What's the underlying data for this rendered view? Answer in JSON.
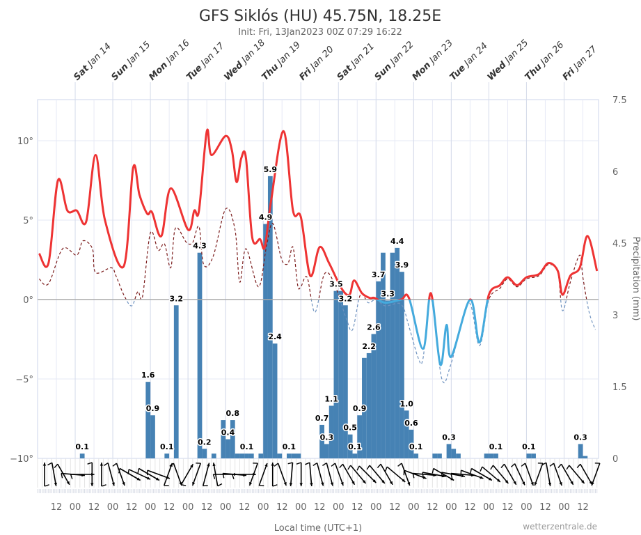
{
  "title": "GFS Siklós (HU) 45.75N, 18.25E",
  "subtitle": "Init: Fri, 13Jan2023 00Z 07:29 16:22",
  "credit": "wetterzentrale.de",
  "colors": {
    "temp_above": "#ee3333",
    "temp_below": "#44aadd",
    "dew_above": "#7a1a1a",
    "dew_below": "#6f93c0",
    "precip": "#4682b4",
    "zero_line": "#aaaaaa",
    "grid": "#e6e9f5",
    "wind": "#000000"
  },
  "chart_data": {
    "type": "line+bar",
    "title": "GFS Siklós (HU) 45.75N, 18.25E",
    "subtitle": "Init: Fri, 13Jan2023 00Z 07:29 16:22",
    "xlabel": "Local time (UTC+1)",
    "ylabel_right": "Precipitation (mm)",
    "xlim": [
      "2023-01-13T00",
      "2023-01-27T22"
    ],
    "ylim_left": [
      -10,
      12.6
    ],
    "ylim_right": [
      0,
      7.5
    ],
    "yticks_left": [
      {
        "v": 10,
        "label": "10°"
      },
      {
        "v": 5,
        "label": "5°"
      },
      {
        "v": 0,
        "label": "0°"
      },
      {
        "v": -5,
        "label": "−5°"
      },
      {
        "v": -10,
        "label": "−10°"
      }
    ],
    "yticks_right": [
      {
        "v": 7.5,
        "label": "7.5"
      },
      {
        "v": 6,
        "label": "6"
      },
      {
        "v": 4.5,
        "label": "4.5"
      },
      {
        "v": 3,
        "label": "3"
      },
      {
        "v": 1.5,
        "label": "1.5"
      },
      {
        "v": 0,
        "label": "0"
      }
    ],
    "grid": true,
    "days": [
      {
        "t": "2023-01-14T00",
        "dow": "Sat",
        "date": " Jan 14"
      },
      {
        "t": "2023-01-15T00",
        "dow": "Sun",
        "date": " Jan 15"
      },
      {
        "t": "2023-01-16T00",
        "dow": "Mon",
        "date": " Jan 16"
      },
      {
        "t": "2023-01-17T00",
        "dow": "Tue",
        "date": " Jan 17"
      },
      {
        "t": "2023-01-18T00",
        "dow": "Wed",
        "date": " Jan 18"
      },
      {
        "t": "2023-01-19T00",
        "dow": "Thu",
        "date": " Jan 19"
      },
      {
        "t": "2023-01-20T00",
        "dow": "Fri",
        "date": " Jan 20"
      },
      {
        "t": "2023-01-21T00",
        "dow": "Sat",
        "date": " Jan 21"
      },
      {
        "t": "2023-01-22T00",
        "dow": "Sun",
        "date": " Jan 22"
      },
      {
        "t": "2023-01-23T00",
        "dow": "Mon",
        "date": " Jan 23"
      },
      {
        "t": "2023-01-24T00",
        "dow": "Tue",
        "date": " Jan 24"
      },
      {
        "t": "2023-01-25T00",
        "dow": "Wed",
        "date": " Jan 25"
      },
      {
        "t": "2023-01-26T00",
        "dow": "Thu",
        "date": " Jan 26"
      },
      {
        "t": "2023-01-27T00",
        "dow": "Fri",
        "date": " Jan 27"
      }
    ],
    "hour_ticks": [
      "12",
      "00",
      "12",
      "00",
      "12",
      "00",
      "12",
      "00",
      "12",
      "00",
      "12",
      "00",
      "12",
      "00",
      "12",
      "00",
      "12",
      "00",
      "12",
      "00",
      "12",
      "00",
      "12",
      "00",
      "12",
      "00",
      "12",
      "00",
      "12"
    ],
    "temperature": [
      [
        "2023-01-13T01",
        2.9
      ],
      [
        "2023-01-13T07",
        2.3
      ],
      [
        "2023-01-13T13",
        7.5
      ],
      [
        "2023-01-13T19",
        5.6
      ],
      [
        "2023-01-14T01",
        5.6
      ],
      [
        "2023-01-14T07",
        4.9
      ],
      [
        "2023-01-14T13",
        9.1
      ],
      [
        "2023-01-14T19",
        5.0
      ],
      [
        "2023-01-15T07",
        2.1
      ],
      [
        "2023-01-15T13",
        8.3
      ],
      [
        "2023-01-15T17",
        6.6
      ],
      [
        "2023-01-15T22",
        5.4
      ],
      [
        "2023-01-16T01",
        5.5
      ],
      [
        "2023-01-16T07",
        4.0
      ],
      [
        "2023-01-16T13",
        7.0
      ],
      [
        "2023-01-17T00",
        4.4
      ],
      [
        "2023-01-17T04",
        5.6
      ],
      [
        "2023-01-17T07",
        5.6
      ],
      [
        "2023-01-17T12",
        10.6
      ],
      [
        "2023-01-17T15",
        9.1
      ],
      [
        "2023-01-18T00",
        10.3
      ],
      [
        "2023-01-18T04",
        9.4
      ],
      [
        "2023-01-18T07",
        7.4
      ],
      [
        "2023-01-18T10",
        8.9
      ],
      [
        "2023-01-18T13",
        8.9
      ],
      [
        "2023-01-18T17",
        3.9
      ],
      [
        "2023-01-18T22",
        3.8
      ],
      [
        "2023-01-19T01",
        3.3
      ],
      [
        "2023-01-19T05",
        6.2
      ],
      [
        "2023-01-19T13",
        10.6
      ],
      [
        "2023-01-19T19",
        5.6
      ],
      [
        "2023-01-20T00",
        5.2
      ],
      [
        "2023-01-20T06",
        1.5
      ],
      [
        "2023-01-20T12",
        3.3
      ],
      [
        "2023-01-20T18",
        2.3
      ],
      [
        "2023-01-21T02",
        0.7
      ],
      [
        "2023-01-21T07",
        0.3
      ],
      [
        "2023-01-21T10",
        1.2
      ],
      [
        "2023-01-21T15",
        0.4
      ],
      [
        "2023-01-21T20",
        0.1
      ],
      [
        "2023-01-21T23",
        0.1
      ],
      [
        "2023-01-22T06",
        -0.2
      ],
      [
        "2023-01-22T16",
        0.0
      ],
      [
        "2023-01-22T21",
        0.1
      ],
      [
        "2023-01-23T06",
        -3.1
      ],
      [
        "2023-01-23T11",
        0.4
      ],
      [
        "2023-01-23T17",
        -4.1
      ],
      [
        "2023-01-23T21",
        -1.6
      ],
      [
        "2023-01-24T00",
        -3.6
      ],
      [
        "2023-01-24T12",
        0.0
      ],
      [
        "2023-01-24T18",
        -2.7
      ],
      [
        "2023-01-25T00",
        0.3
      ],
      [
        "2023-01-25T07",
        0.9
      ],
      [
        "2023-01-25T12",
        1.4
      ],
      [
        "2023-01-25T18",
        0.9
      ],
      [
        "2023-01-26T00",
        1.4
      ],
      [
        "2023-01-26T08",
        1.6
      ],
      [
        "2023-01-26T14",
        2.3
      ],
      [
        "2023-01-26T20",
        1.8
      ],
      [
        "2023-01-26T23",
        0.3
      ],
      [
        "2023-01-27T04",
        1.5
      ],
      [
        "2023-01-27T10",
        2.0
      ],
      [
        "2023-01-27T15",
        4.0
      ],
      [
        "2023-01-27T21",
        1.8
      ]
    ],
    "dewpoint": [
      [
        "2023-01-13T01",
        1.3
      ],
      [
        "2023-01-13T07",
        1.0
      ],
      [
        "2023-01-13T16",
        3.2
      ],
      [
        "2023-01-14T01",
        2.8
      ],
      [
        "2023-01-14T05",
        3.7
      ],
      [
        "2023-01-14T11",
        3.2
      ],
      [
        "2023-01-14T13",
        1.7
      ],
      [
        "2023-01-14T23",
        2.0
      ],
      [
        "2023-01-15T02",
        1.5
      ],
      [
        "2023-01-15T07",
        0.3
      ],
      [
        "2023-01-15T12",
        -0.4
      ],
      [
        "2023-01-15T16",
        0.5
      ],
      [
        "2023-01-15T19",
        0.2
      ],
      [
        "2023-01-16T00",
        4.2
      ],
      [
        "2023-01-16T05",
        3.1
      ],
      [
        "2023-01-16T09",
        3.5
      ],
      [
        "2023-01-16T13",
        2.0
      ],
      [
        "2023-01-16T16",
        4.5
      ],
      [
        "2023-01-16T23",
        3.6
      ],
      [
        "2023-01-17T03",
        3.6
      ],
      [
        "2023-01-17T07",
        4.6
      ],
      [
        "2023-01-17T10",
        2.2
      ],
      [
        "2023-01-17T16",
        2.7
      ],
      [
        "2023-01-18T00",
        5.7
      ],
      [
        "2023-01-18T06",
        4.4
      ],
      [
        "2023-01-18T09",
        1.1
      ],
      [
        "2023-01-18T13",
        3.2
      ],
      [
        "2023-01-18T21",
        0.8
      ],
      [
        "2023-01-19T02",
        3.3
      ],
      [
        "2023-01-19T06",
        4.8
      ],
      [
        "2023-01-19T11",
        2.8
      ],
      [
        "2023-01-19T13",
        2.3
      ],
      [
        "2023-01-19T16",
        2.3
      ],
      [
        "2023-01-19T19",
        3.3
      ],
      [
        "2023-01-19T22",
        0.9
      ],
      [
        "2023-01-20T00",
        0.8
      ],
      [
        "2023-01-20T04",
        1.4
      ],
      [
        "2023-01-20T09",
        -0.8
      ],
      [
        "2023-01-20T15",
        1.6
      ],
      [
        "2023-01-20T21",
        1.1
      ],
      [
        "2023-01-21T05",
        -1.2
      ],
      [
        "2023-01-21T09",
        -1.9
      ],
      [
        "2023-01-21T14",
        0.3
      ],
      [
        "2023-01-21T19",
        -0.2
      ],
      [
        "2023-01-22T00",
        0.0
      ],
      [
        "2023-01-22T06",
        -0.4
      ],
      [
        "2023-01-22T16",
        -0.3
      ],
      [
        "2023-01-22T21",
        -1.7
      ],
      [
        "2023-01-23T03",
        -3.7
      ],
      [
        "2023-01-23T06",
        -3.7
      ],
      [
        "2023-01-23T11",
        0.1
      ],
      [
        "2023-01-23T18",
        -5.0
      ],
      [
        "2023-01-24T00",
        -4.0
      ],
      [
        "2023-01-24T11",
        -0.2
      ],
      [
        "2023-01-24T18",
        -2.9
      ],
      [
        "2023-01-25T00",
        0.0
      ],
      [
        "2023-01-25T07",
        0.7
      ],
      [
        "2023-01-25T12",
        1.3
      ],
      [
        "2023-01-25T18",
        0.8
      ],
      [
        "2023-01-26T00",
        1.3
      ],
      [
        "2023-01-26T08",
        1.5
      ],
      [
        "2023-01-26T14",
        2.2
      ],
      [
        "2023-01-26T20",
        1.7
      ],
      [
        "2023-01-26T23",
        -0.7
      ],
      [
        "2023-01-27T04",
        1.1
      ],
      [
        "2023-01-27T10",
        2.8
      ],
      [
        "2023-01-27T12",
        1.4
      ],
      [
        "2023-01-27T16",
        -0.8
      ],
      [
        "2023-01-27T20",
        -1.9
      ]
    ],
    "precipitation_3h": [
      {
        "t": "2023-01-14T03",
        "v": 0.1,
        "label": "0.1"
      },
      {
        "t": "2023-01-15T21",
        "v": 1.6,
        "label": "1.6"
      },
      {
        "t": "2023-01-16T00",
        "v": 0.9,
        "label": "0.9"
      },
      {
        "t": "2023-01-16T09",
        "v": 0.1,
        "label": "0.1"
      },
      {
        "t": "2023-01-16T15",
        "v": 3.2,
        "label": "3.2"
      },
      {
        "t": "2023-01-17T06",
        "v": 4.3,
        "label": "4.3"
      },
      {
        "t": "2023-01-17T09",
        "v": 0.2,
        "label": "0.2"
      },
      {
        "t": "2023-01-17T15",
        "v": 0.1,
        "label": ""
      },
      {
        "t": "2023-01-17T21",
        "v": 0.8,
        "label": ""
      },
      {
        "t": "2023-01-18T00",
        "v": 0.4,
        "label": "0.4"
      },
      {
        "t": "2023-01-18T03",
        "v": 0.8,
        "label": "0.8"
      },
      {
        "t": "2023-01-18T06",
        "v": 0.1,
        "label": ""
      },
      {
        "t": "2023-01-18T09",
        "v": 0.1,
        "label": ""
      },
      {
        "t": "2023-01-18T12",
        "v": 0.1,
        "label": "0.1"
      },
      {
        "t": "2023-01-18T15",
        "v": 0.1,
        "label": ""
      },
      {
        "t": "2023-01-18T21",
        "v": 0.1,
        "label": ""
      },
      {
        "t": "2023-01-19T00",
        "v": 4.9,
        "label": "4.9"
      },
      {
        "t": "2023-01-19T03",
        "v": 5.9,
        "label": "5.9"
      },
      {
        "t": "2023-01-19T06",
        "v": 2.4,
        "label": "2.4"
      },
      {
        "t": "2023-01-19T09",
        "v": 0.1,
        "label": ""
      },
      {
        "t": "2023-01-19T15",
        "v": 0.1,
        "label": "0.1"
      },
      {
        "t": "2023-01-19T18",
        "v": 0.1,
        "label": ""
      },
      {
        "t": "2023-01-19T21",
        "v": 0.1,
        "label": ""
      },
      {
        "t": "2023-01-20T12",
        "v": 0.7,
        "label": "0.7"
      },
      {
        "t": "2023-01-20T15",
        "v": 0.3,
        "label": "0.3"
      },
      {
        "t": "2023-01-20T18",
        "v": 1.1,
        "label": "1.1"
      },
      {
        "t": "2023-01-20T21",
        "v": 3.5,
        "label": "3.5"
      },
      {
        "t": "2023-01-21T00",
        "v": 3.5,
        "label": ""
      },
      {
        "t": "2023-01-21T03",
        "v": 3.2,
        "label": "3.2"
      },
      {
        "t": "2023-01-21T06",
        "v": 0.5,
        "label": "0.5"
      },
      {
        "t": "2023-01-21T09",
        "v": 0.1,
        "label": "0.1"
      },
      {
        "t": "2023-01-21T12",
        "v": 0.9,
        "label": "0.9"
      },
      {
        "t": "2023-01-21T15",
        "v": 2.1,
        "label": ""
      },
      {
        "t": "2023-01-21T18",
        "v": 2.2,
        "label": "2.2"
      },
      {
        "t": "2023-01-21T21",
        "v": 2.6,
        "label": "2.6"
      },
      {
        "t": "2023-01-22T00",
        "v": 3.7,
        "label": "3.7"
      },
      {
        "t": "2023-01-22T03",
        "v": 4.3,
        "label": ""
      },
      {
        "t": "2023-01-22T06",
        "v": 3.3,
        "label": "3.3"
      },
      {
        "t": "2023-01-22T09",
        "v": 4.3,
        "label": ""
      },
      {
        "t": "2023-01-22T12",
        "v": 4.4,
        "label": "4.4"
      },
      {
        "t": "2023-01-22T15",
        "v": 3.9,
        "label": "3.9"
      },
      {
        "t": "2023-01-22T18",
        "v": 1.0,
        "label": "1.0"
      },
      {
        "t": "2023-01-22T21",
        "v": 0.6,
        "label": "0.6"
      },
      {
        "t": "2023-01-23T00",
        "v": 0.1,
        "label": "0.1"
      },
      {
        "t": "2023-01-23T12",
        "v": 0.1,
        "label": ""
      },
      {
        "t": "2023-01-23T15",
        "v": 0.1,
        "label": ""
      },
      {
        "t": "2023-01-23T21",
        "v": 0.3,
        "label": "0.3"
      },
      {
        "t": "2023-01-24T00",
        "v": 0.2,
        "label": ""
      },
      {
        "t": "2023-01-24T03",
        "v": 0.1,
        "label": ""
      },
      {
        "t": "2023-01-24T21",
        "v": 0.1,
        "label": ""
      },
      {
        "t": "2023-01-25T00",
        "v": 0.1,
        "label": ""
      },
      {
        "t": "2023-01-25T03",
        "v": 0.1,
        "label": "0.1"
      },
      {
        "t": "2023-01-26T00",
        "v": 0.1,
        "label": "0.1"
      },
      {
        "t": "2023-01-26T03",
        "v": 0.1,
        "label": ""
      },
      {
        "t": "2023-01-27T09",
        "v": 0.3,
        "label": "0.3"
      },
      {
        "t": "2023-01-27T12",
        "v": 0.05,
        "label": ""
      }
    ],
    "wind_arrow_direction_deg": [
      0,
      170,
      150,
      95,
      90,
      180,
      0,
      165,
      160,
      120,
      115,
      120,
      110,
      20,
      160,
      30,
      200,
      15,
      350,
      90,
      95,
      90,
      200,
      20,
      0,
      160,
      185,
      180,
      175,
      165,
      165,
      160,
      150,
      140,
      135,
      140,
      150,
      130,
      160,
      110,
      95,
      100,
      120,
      100,
      95,
      110,
      120,
      130,
      140,
      150,
      155,
      160,
      200,
      170,
      160,
      150,
      140,
      150,
      200
    ]
  }
}
